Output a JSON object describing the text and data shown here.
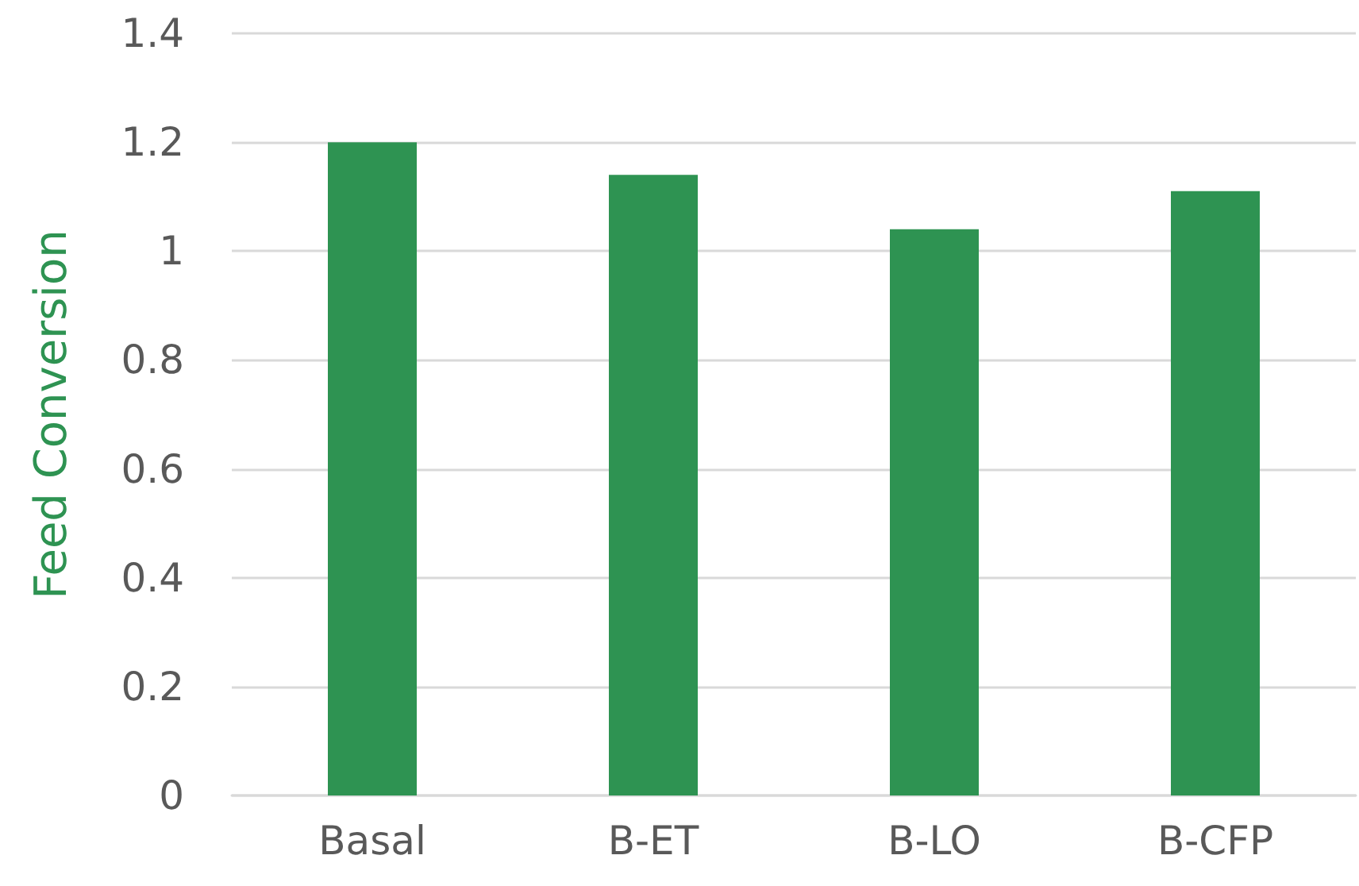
{
  "chart_data": {
    "type": "bar",
    "ylabel": "Feed Conversion",
    "categories": [
      "Basal",
      "B-ET",
      "B-LO",
      "B-CFP"
    ],
    "series": [
      {
        "color": "#2e9352",
        "values": [
          1.2,
          1.14,
          1.04,
          1.11
        ]
      }
    ],
    "ylim": [
      0,
      1.4
    ],
    "yticks": [
      0,
      0.2,
      0.4,
      0.6,
      0.8,
      1,
      1.2,
      1.4
    ],
    "grid": "y"
  }
}
